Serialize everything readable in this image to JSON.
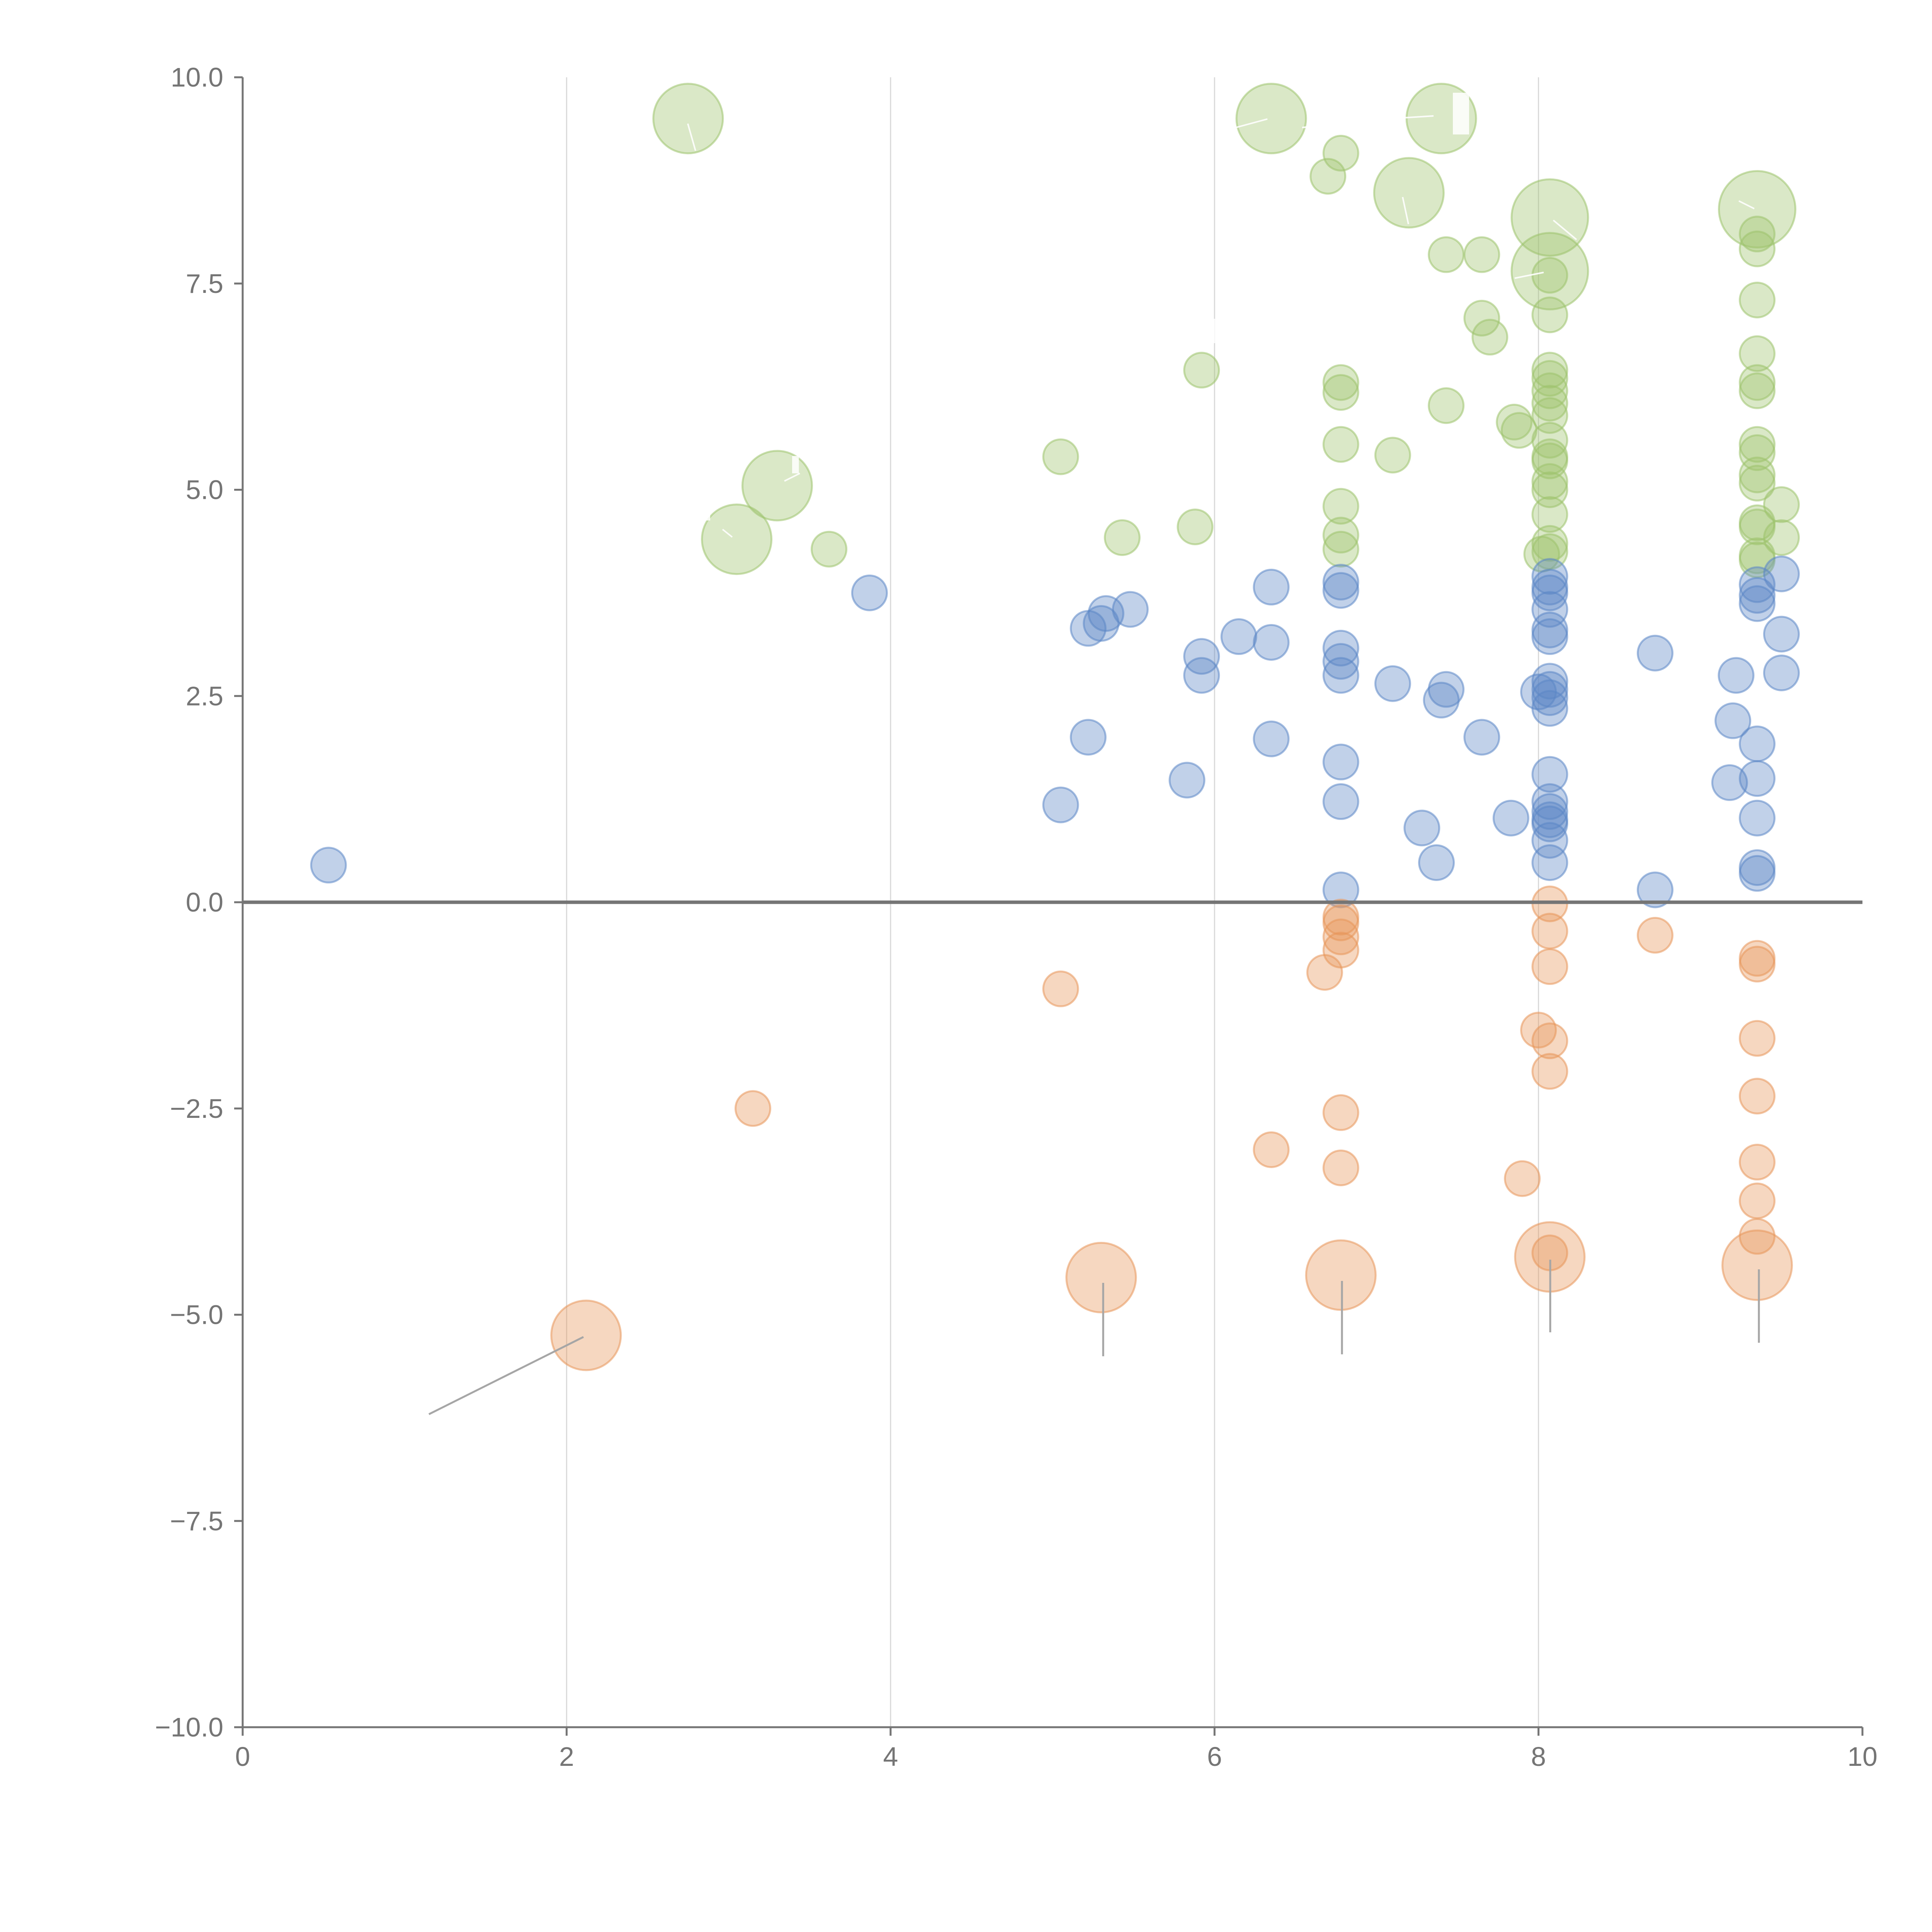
{
  "chart_data": {
    "type": "scatter",
    "title": "",
    "xlabel": "",
    "ylabel": "",
    "xlim": [
      0,
      10
    ],
    "ylim": [
      -10,
      10
    ],
    "xticks": [
      "0",
      "2",
      "4",
      "6",
      "8",
      "10"
    ],
    "yticks": [
      "10.0",
      "7.5",
      "5.0",
      "2.5",
      "0.0",
      "−2.5",
      "−5.0",
      "−7.5",
      "−10.0"
    ],
    "grid": "vertical",
    "zero_line": true,
    "colors": {
      "green": "#9dc36b",
      "blue": "#5b87c6",
      "orange": "#e8955a"
    },
    "series": [
      {
        "name": "green",
        "color": "#9dc36b",
        "points": [
          [
            2.75,
            9.5,
            2
          ],
          [
            6.35,
            9.5,
            2
          ],
          [
            7.4,
            9.5,
            2
          ],
          [
            6.78,
            9.08,
            1
          ],
          [
            6.7,
            8.8,
            1
          ],
          [
            7.2,
            8.6,
            2
          ],
          [
            8.07,
            8.3,
            2.2
          ],
          [
            9.35,
            8.4,
            2.2
          ],
          [
            9.35,
            8.1,
            1
          ],
          [
            7.43,
            7.85,
            1
          ],
          [
            7.65,
            7.85,
            1
          ],
          [
            9.35,
            7.92,
            1
          ],
          [
            8.07,
            7.65,
            2.2
          ],
          [
            8.07,
            7.6,
            1
          ],
          [
            9.35,
            7.3,
            1
          ],
          [
            7.65,
            7.08,
            1
          ],
          [
            8.07,
            7.12,
            1
          ],
          [
            7.7,
            6.85,
            1
          ],
          [
            5.92,
            6.45,
            1
          ],
          [
            8.07,
            6.45,
            1
          ],
          [
            6.78,
            6.3,
            1
          ],
          [
            8.07,
            6.35,
            1
          ],
          [
            6.78,
            6.18,
            1
          ],
          [
            9.35,
            6.65,
            1
          ],
          [
            9.35,
            6.3,
            1
          ],
          [
            9.35,
            6.2,
            1
          ],
          [
            7.43,
            6.02,
            1
          ],
          [
            8.07,
            6.2,
            1
          ],
          [
            8.07,
            6.05,
            1
          ],
          [
            7.85,
            5.82,
            1
          ],
          [
            7.88,
            5.72,
            1
          ],
          [
            8.07,
            5.9,
            1
          ],
          [
            8.07,
            5.6,
            1
          ],
          [
            6.78,
            5.55,
            1
          ],
          [
            9.35,
            5.55,
            1
          ],
          [
            9.35,
            5.45,
            1
          ],
          [
            5.05,
            5.4,
            1
          ],
          [
            7.1,
            5.42,
            1
          ],
          [
            8.07,
            5.4,
            1
          ],
          [
            8.07,
            5.35,
            1
          ],
          [
            9.35,
            5.18,
            1
          ],
          [
            9.35,
            5.08,
            1
          ],
          [
            3.3,
            5.05,
            2
          ],
          [
            8.07,
            5.1,
            1
          ],
          [
            8.07,
            5.0,
            1
          ],
          [
            9.5,
            4.82,
            1
          ],
          [
            6.78,
            4.8,
            1
          ],
          [
            8.07,
            4.7,
            1
          ],
          [
            9.35,
            4.6,
            1
          ],
          [
            9.35,
            4.55,
            1
          ],
          [
            5.88,
            4.55,
            1
          ],
          [
            6.78,
            4.45,
            1
          ],
          [
            3.05,
            4.4,
            2
          ],
          [
            5.43,
            4.42,
            1
          ],
          [
            9.5,
            4.42,
            1
          ],
          [
            8.07,
            4.35,
            1
          ],
          [
            3.62,
            4.28,
            1
          ],
          [
            6.78,
            4.28,
            1
          ],
          [
            8.07,
            4.25,
            1
          ],
          [
            8.02,
            4.22,
            1
          ],
          [
            9.35,
            4.2,
            1
          ],
          [
            9.35,
            4.15,
            1
          ]
        ]
      },
      {
        "name": "blue",
        "color": "#5b87c6",
        "points": [
          [
            3.87,
            3.75,
            1
          ],
          [
            6.35,
            3.82,
            1
          ],
          [
            6.78,
            3.88,
            1
          ],
          [
            6.78,
            3.78,
            1
          ],
          [
            8.07,
            3.95,
            1
          ],
          [
            8.07,
            3.82,
            1
          ],
          [
            8.07,
            3.75,
            1
          ],
          [
            9.5,
            3.98,
            1
          ],
          [
            9.35,
            3.85,
            1
          ],
          [
            9.35,
            3.72,
            1
          ],
          [
            9.35,
            3.62,
            1
          ],
          [
            5.48,
            3.55,
            1
          ],
          [
            8.07,
            3.55,
            1
          ],
          [
            5.33,
            3.5,
            1
          ],
          [
            5.22,
            3.32,
            1
          ],
          [
            5.3,
            3.38,
            1
          ],
          [
            6.15,
            3.22,
            1
          ],
          [
            6.35,
            3.15,
            1
          ],
          [
            8.07,
            3.3,
            1
          ],
          [
            8.07,
            3.22,
            1
          ],
          [
            9.5,
            3.25,
            1
          ],
          [
            6.78,
            3.08,
            1
          ],
          [
            8.72,
            3.02,
            1
          ],
          [
            5.92,
            2.98,
            1
          ],
          [
            6.78,
            2.92,
            1
          ],
          [
            6.78,
            2.75,
            1
          ],
          [
            5.92,
            2.75,
            1
          ],
          [
            9.22,
            2.75,
            1
          ],
          [
            9.5,
            2.78,
            1
          ],
          [
            8.07,
            2.68,
            1
          ],
          [
            7.1,
            2.65,
            1
          ],
          [
            7.43,
            2.58,
            1
          ],
          [
            8.07,
            2.58,
            1
          ],
          [
            8.0,
            2.55,
            1
          ],
          [
            7.4,
            2.45,
            1
          ],
          [
            8.07,
            2.48,
            1
          ],
          [
            8.07,
            2.35,
            1
          ],
          [
            9.2,
            2.2,
            1
          ],
          [
            5.22,
            2.0,
            1
          ],
          [
            6.35,
            1.98,
            1
          ],
          [
            7.65,
            2.0,
            1
          ],
          [
            9.35,
            1.92,
            1
          ],
          [
            6.78,
            1.7,
            1
          ],
          [
            8.07,
            1.55,
            1
          ],
          [
            9.35,
            1.5,
            1
          ],
          [
            5.83,
            1.48,
            1
          ],
          [
            9.18,
            1.45,
            1
          ],
          [
            6.78,
            1.22,
            1
          ],
          [
            8.07,
            1.22,
            1
          ],
          [
            5.05,
            1.18,
            1
          ],
          [
            8.07,
            1.1,
            1
          ],
          [
            7.83,
            1.02,
            1
          ],
          [
            9.35,
            1.02,
            1
          ],
          [
            8.07,
            1.0,
            1
          ],
          [
            8.07,
            0.95,
            1
          ],
          [
            7.28,
            0.9,
            1
          ],
          [
            8.07,
            0.75,
            1
          ],
          [
            0.53,
            0.45,
            1
          ],
          [
            7.37,
            0.48,
            1
          ],
          [
            8.07,
            0.48,
            1
          ],
          [
            9.35,
            0.42,
            1
          ],
          [
            9.35,
            0.35,
            1
          ],
          [
            6.78,
            0.15,
            1
          ],
          [
            8.72,
            0.15,
            1
          ]
        ]
      },
      {
        "name": "orange",
        "color": "#e8955a",
        "points": [
          [
            8.07,
            -0.02,
            1
          ],
          [
            6.78,
            -0.18,
            1
          ],
          [
            6.78,
            -0.25,
            1
          ],
          [
            6.78,
            -0.42,
            1
          ],
          [
            8.07,
            -0.35,
            1
          ],
          [
            8.72,
            -0.4,
            1
          ],
          [
            6.78,
            -0.58,
            1
          ],
          [
            9.35,
            -0.68,
            1
          ],
          [
            9.35,
            -0.75,
            1
          ],
          [
            8.07,
            -0.78,
            1
          ],
          [
            6.68,
            -0.85,
            1
          ],
          [
            5.05,
            -1.05,
            1
          ],
          [
            8.0,
            -1.55,
            1
          ],
          [
            8.07,
            -1.68,
            1
          ],
          [
            9.35,
            -1.65,
            1
          ],
          [
            8.07,
            -2.05,
            1
          ],
          [
            9.35,
            -2.35,
            1
          ],
          [
            3.15,
            -2.5,
            1
          ],
          [
            6.78,
            -2.55,
            1
          ],
          [
            6.35,
            -3.0,
            1
          ],
          [
            9.35,
            -3.15,
            1
          ],
          [
            6.78,
            -3.22,
            1
          ],
          [
            7.9,
            -3.35,
            1
          ],
          [
            9.35,
            -3.62,
            1
          ],
          [
            9.35,
            -4.05,
            1
          ],
          [
            8.07,
            -4.3,
            2
          ],
          [
            8.07,
            -4.25,
            1
          ],
          [
            9.35,
            -4.4,
            2
          ],
          [
            5.3,
            -4.55,
            2
          ],
          [
            6.78,
            -4.52,
            2
          ],
          [
            2.12,
            -5.25,
            2
          ]
        ]
      }
    ]
  }
}
